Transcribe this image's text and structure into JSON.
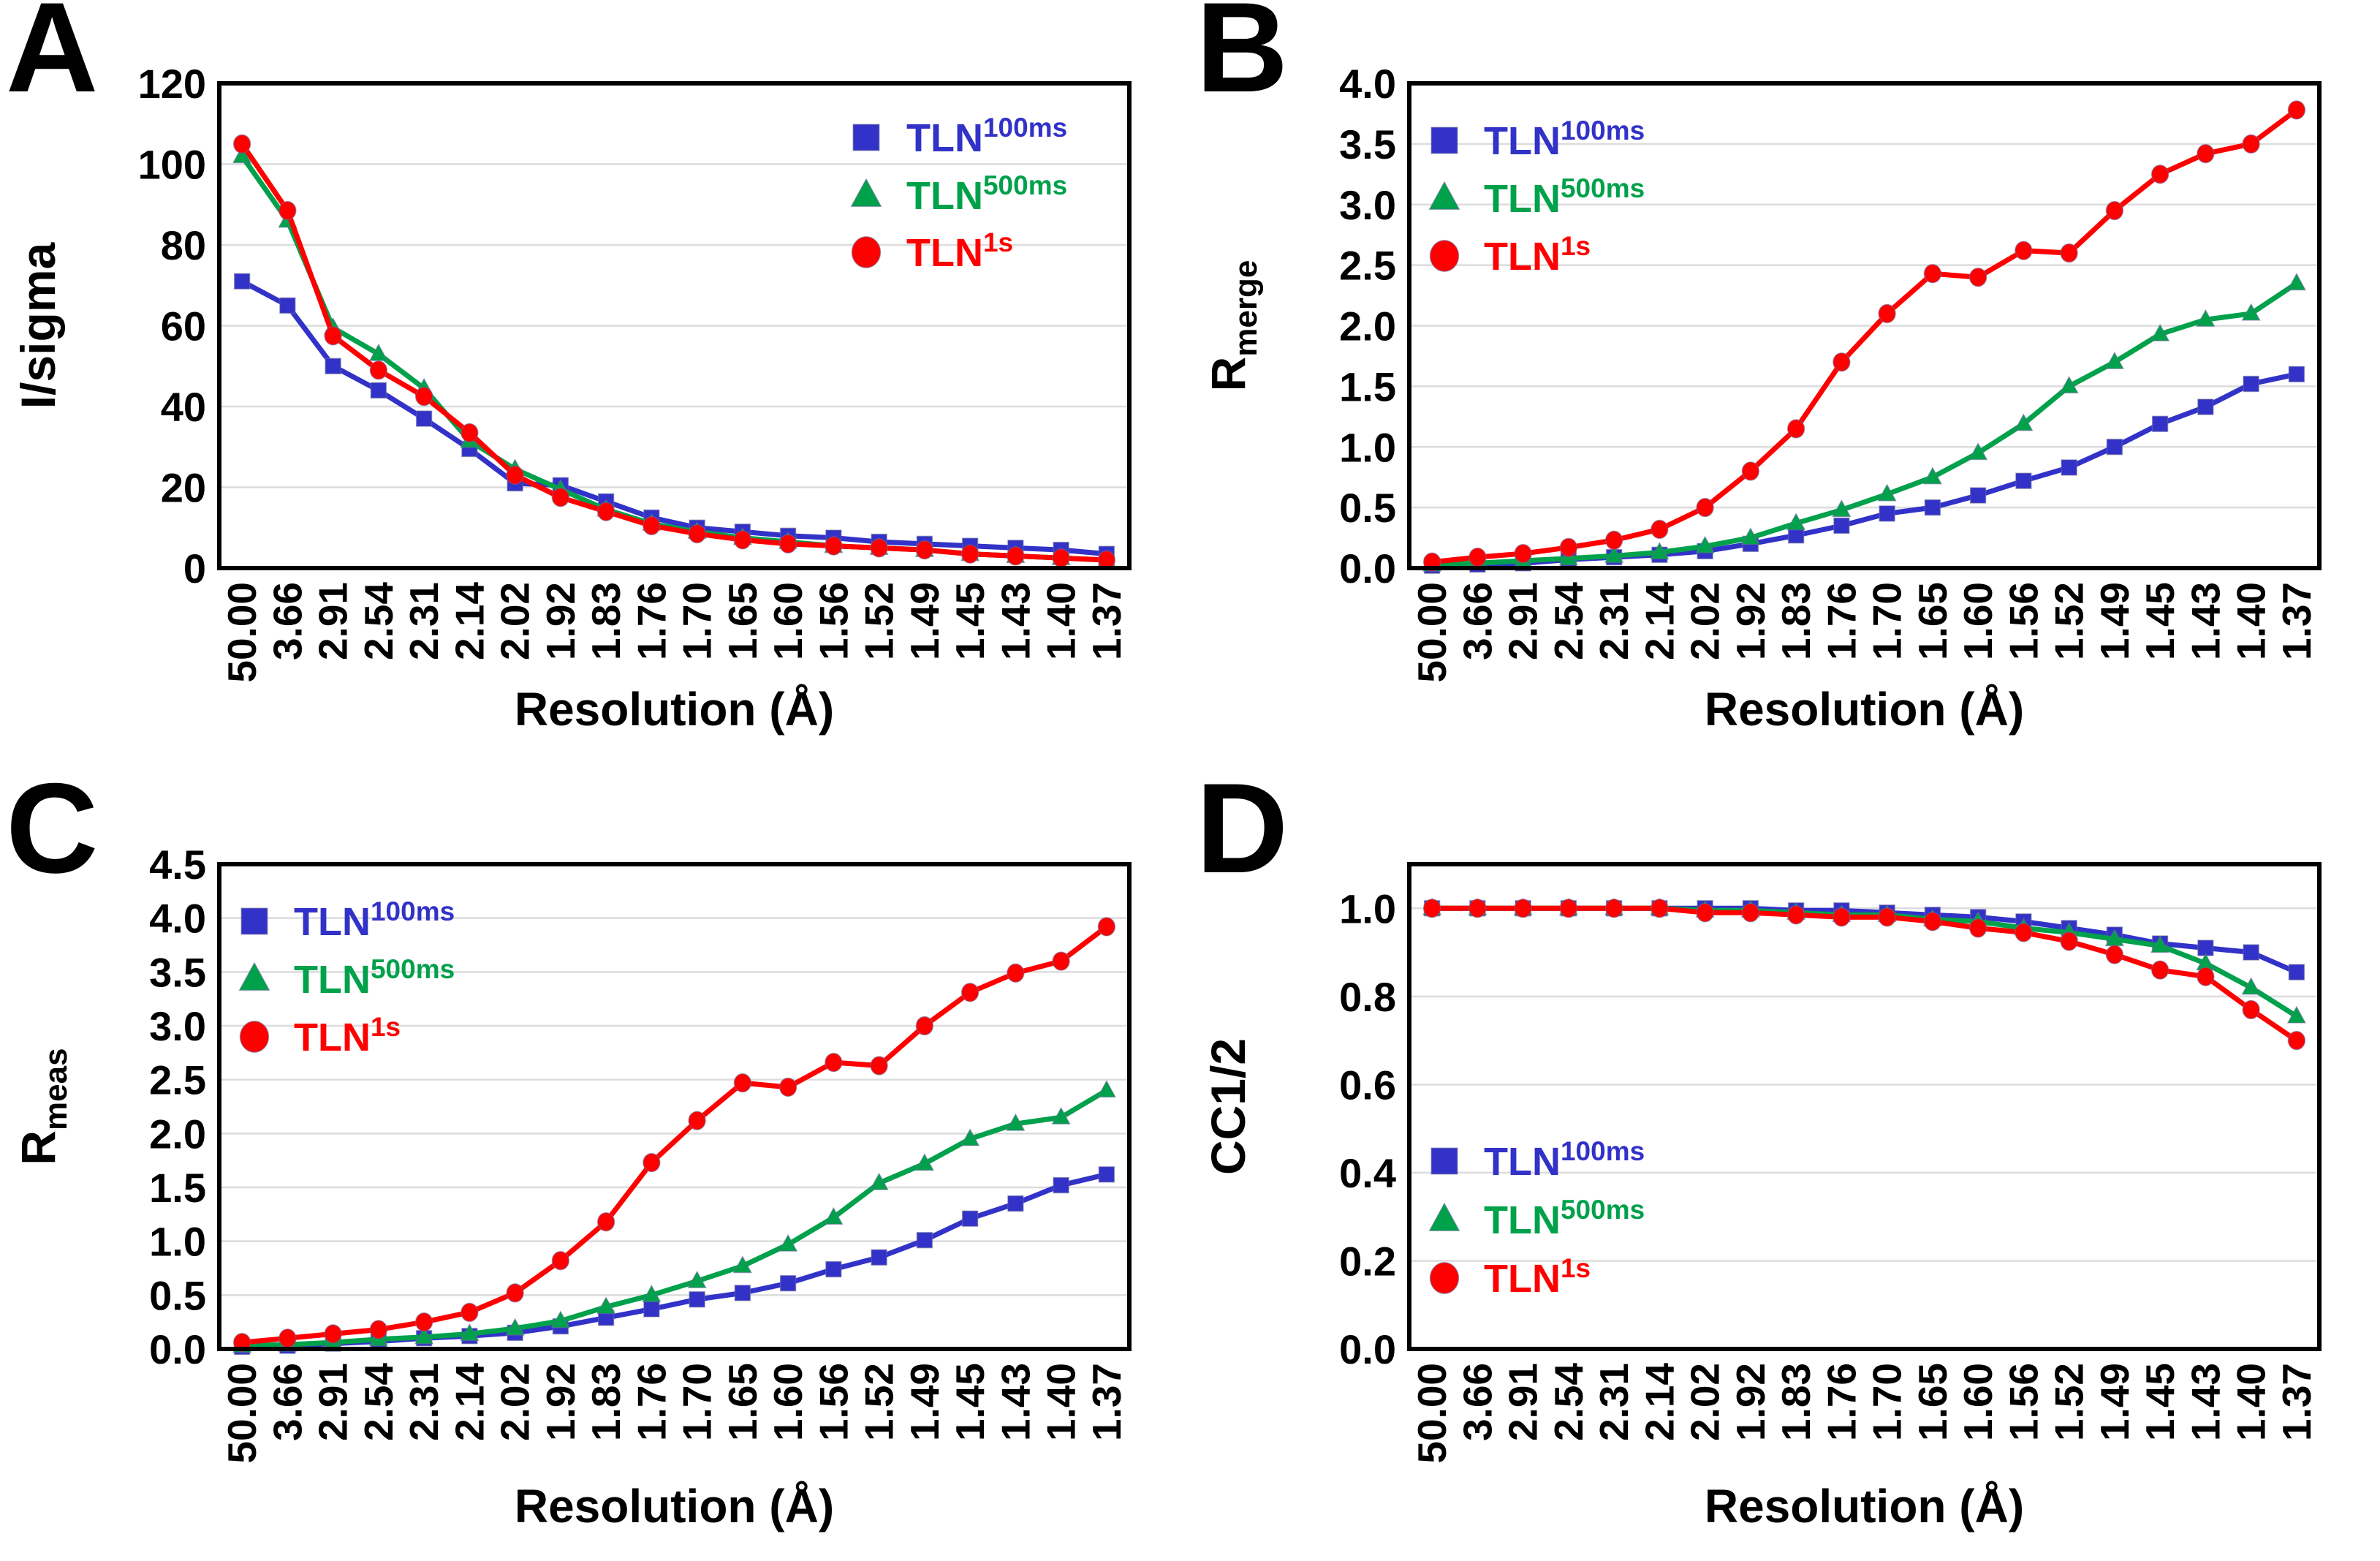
{
  "figure": {
    "background": "#FFFFFF",
    "grid_color": "#DCDCDC",
    "frame_color": "#000000",
    "text_color": "#000000"
  },
  "chart_data": [
    {
      "type": "line",
      "panel_label": "A",
      "xlabel": "Resolution (Å)",
      "ylabel": "I/sigma",
      "ylabel_sub": "",
      "ylim": [
        0,
        120
      ],
      "yticks": [
        0,
        20,
        40,
        60,
        80,
        100,
        120
      ],
      "ytick_labels": [
        "0",
        "20",
        "40",
        "60",
        "80",
        "100",
        "120"
      ],
      "grid": "horizontal",
      "legend_position": "top-right",
      "categories": [
        "50.00",
        "3.66",
        "2.91",
        "2.54",
        "2.31",
        "2.14",
        "2.02",
        "1.92",
        "1.83",
        "1.76",
        "1.70",
        "1.65",
        "1.60",
        "1.56",
        "1.52",
        "1.49",
        "1.45",
        "1.43",
        "1.40",
        "1.37"
      ],
      "series": [
        {
          "name": "TLN",
          "name_sup": "100ms",
          "marker": "square",
          "color": "#3232C8",
          "values": [
            71,
            65,
            50,
            44,
            37,
            29.5,
            21,
            20.5,
            16.5,
            12.5,
            10,
            9,
            8,
            7.5,
            6.5,
            6,
            5.5,
            5,
            4.5,
            3.5
          ]
        },
        {
          "name": "TLN",
          "name_sup": "500ms",
          "marker": "triangle",
          "color": "#00A14B",
          "values": [
            102,
            86,
            59.5,
            53,
            44.5,
            31.5,
            24.5,
            19.5,
            14.5,
            11,
            9,
            7.5,
            6.5,
            5.5,
            5,
            4.5,
            3.5,
            3,
            2.5,
            2
          ]
        },
        {
          "name": "TLN",
          "name_sup": "1s",
          "marker": "circle",
          "color": "#FF0000",
          "values": [
            105,
            88.5,
            57.5,
            49,
            42.5,
            33.5,
            23,
            17.5,
            14,
            10.5,
            8.5,
            7,
            6,
            5.5,
            5,
            4.5,
            3.5,
            3,
            2.5,
            2
          ]
        }
      ]
    },
    {
      "type": "line",
      "panel_label": "B",
      "xlabel": "Resolution (Å)",
      "ylabel": "R",
      "ylabel_sub": "merge",
      "ylim": [
        0,
        4.0
      ],
      "yticks": [
        0,
        0.5,
        1.0,
        1.5,
        2.0,
        2.5,
        3.0,
        3.5,
        4.0
      ],
      "ytick_labels": [
        "0.0",
        "0.5",
        "1.0",
        "1.5",
        "2.0",
        "2.5",
        "3.0",
        "3.5",
        "4.0"
      ],
      "grid": "horizontal",
      "legend_position": "top-left",
      "categories": [
        "50.00",
        "3.66",
        "2.91",
        "2.54",
        "2.31",
        "2.14",
        "2.02",
        "1.92",
        "1.83",
        "1.76",
        "1.70",
        "1.65",
        "1.60",
        "1.56",
        "1.52",
        "1.49",
        "1.45",
        "1.43",
        "1.40",
        "1.37"
      ],
      "series": [
        {
          "name": "TLN",
          "name_sup": "100ms",
          "marker": "square",
          "color": "#3232C8",
          "values": [
            0.02,
            0.03,
            0.04,
            0.07,
            0.09,
            0.11,
            0.14,
            0.2,
            0.27,
            0.35,
            0.45,
            0.5,
            0.6,
            0.72,
            0.83,
            1.0,
            1.19,
            1.33,
            1.52,
            1.6
          ]
        },
        {
          "name": "TLN",
          "name_sup": "500ms",
          "marker": "triangle",
          "color": "#00A14B",
          "values": [
            0.03,
            0.04,
            0.06,
            0.08,
            0.1,
            0.13,
            0.18,
            0.25,
            0.37,
            0.48,
            0.61,
            0.75,
            0.95,
            1.19,
            1.5,
            1.7,
            1.93,
            2.05,
            2.1,
            2.35
          ]
        },
        {
          "name": "TLN",
          "name_sup": "1s",
          "marker": "circle",
          "color": "#FF0000",
          "values": [
            0.05,
            0.09,
            0.12,
            0.17,
            0.23,
            0.32,
            0.5,
            0.8,
            1.15,
            1.7,
            2.1,
            2.43,
            2.4,
            2.62,
            2.6,
            2.95,
            3.25,
            3.42,
            3.5,
            3.78
          ]
        }
      ]
    },
    {
      "type": "line",
      "panel_label": "C",
      "xlabel": "Resolution (Å)",
      "ylabel": "R",
      "ylabel_sub": "meas",
      "ylim": [
        0,
        4.5
      ],
      "yticks": [
        0,
        0.5,
        1.0,
        1.5,
        2.0,
        2.5,
        3.0,
        3.5,
        4.0,
        4.5
      ],
      "ytick_labels": [
        "0.0",
        "0.5",
        "1.0",
        "1.5",
        "2.0",
        "2.5",
        "3.0",
        "3.5",
        "4.0",
        "4.5"
      ],
      "grid": "horizontal",
      "legend_position": "top-left",
      "categories": [
        "50.00",
        "3.66",
        "2.91",
        "2.54",
        "2.31",
        "2.14",
        "2.02",
        "1.92",
        "1.83",
        "1.76",
        "1.70",
        "1.65",
        "1.60",
        "1.56",
        "1.52",
        "1.49",
        "1.45",
        "1.43",
        "1.40",
        "1.37"
      ],
      "series": [
        {
          "name": "TLN",
          "name_sup": "100ms",
          "marker": "square",
          "color": "#3232C8",
          "values": [
            0.02,
            0.03,
            0.05,
            0.07,
            0.1,
            0.12,
            0.15,
            0.21,
            0.29,
            0.37,
            0.46,
            0.52,
            0.61,
            0.74,
            0.85,
            1.01,
            1.21,
            1.35,
            1.52,
            1.62
          ]
        },
        {
          "name": "TLN",
          "name_sup": "500ms",
          "marker": "triangle",
          "color": "#00A14B",
          "values": [
            0.03,
            0.04,
            0.06,
            0.09,
            0.11,
            0.14,
            0.19,
            0.26,
            0.39,
            0.5,
            0.63,
            0.77,
            0.97,
            1.22,
            1.54,
            1.72,
            1.95,
            2.09,
            2.15,
            2.4
          ]
        },
        {
          "name": "TLN",
          "name_sup": "1s",
          "marker": "circle",
          "color": "#FF0000",
          "values": [
            0.06,
            0.1,
            0.14,
            0.18,
            0.25,
            0.34,
            0.52,
            0.82,
            1.18,
            1.73,
            2.12,
            2.47,
            2.43,
            2.66,
            2.63,
            3.0,
            3.31,
            3.49,
            3.6,
            3.92
          ]
        }
      ]
    },
    {
      "type": "line",
      "panel_label": "D",
      "xlabel": "Resolution (Å)",
      "ylabel": "CC1/2",
      "ylabel_sub": "",
      "ylim": [
        0,
        1.1
      ],
      "yticks": [
        0,
        0.2,
        0.4,
        0.6,
        0.8,
        1.0
      ],
      "ytick_labels": [
        "0.0",
        "0.2",
        "0.4",
        "0.6",
        "0.8",
        "1.0"
      ],
      "grid": "horizontal",
      "legend_position": "bottom-left",
      "categories": [
        "50.00",
        "3.66",
        "2.91",
        "2.54",
        "2.31",
        "2.14",
        "2.02",
        "1.92",
        "1.83",
        "1.76",
        "1.70",
        "1.65",
        "1.60",
        "1.56",
        "1.52",
        "1.49",
        "1.45",
        "1.43",
        "1.40",
        "1.37"
      ],
      "series": [
        {
          "name": "TLN",
          "name_sup": "100ms",
          "marker": "square",
          "color": "#3232C8",
          "values": [
            1.0,
            1.0,
            1.0,
            1.0,
            1.0,
            1.0,
            1.0,
            1.0,
            0.995,
            0.995,
            0.99,
            0.985,
            0.98,
            0.97,
            0.955,
            0.94,
            0.92,
            0.91,
            0.9,
            0.855
          ]
        },
        {
          "name": "TLN",
          "name_sup": "500ms",
          "marker": "triangle",
          "color": "#00A14B",
          "values": [
            1.0,
            1.0,
            1.0,
            1.0,
            1.0,
            1.0,
            0.995,
            0.995,
            0.99,
            0.985,
            0.985,
            0.975,
            0.97,
            0.955,
            0.945,
            0.93,
            0.915,
            0.875,
            0.82,
            0.755
          ]
        },
        {
          "name": "TLN",
          "name_sup": "1s",
          "marker": "circle",
          "color": "#FF0000",
          "values": [
            1.0,
            1.0,
            1.0,
            1.0,
            1.0,
            1.0,
            0.99,
            0.99,
            0.985,
            0.98,
            0.98,
            0.97,
            0.955,
            0.945,
            0.925,
            0.895,
            0.86,
            0.845,
            0.77,
            0.7
          ]
        }
      ]
    }
  ]
}
